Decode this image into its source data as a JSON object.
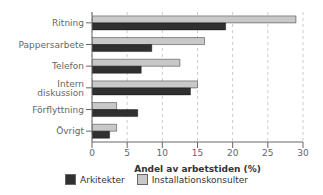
{
  "chart_data": {
    "type": "bar",
    "orientation": "horizontal",
    "categories": [
      "Ritning",
      "Pappersarbete",
      "Telefon",
      "Intern diskussion",
      "Förflyttning",
      "Övrigt"
    ],
    "series": [
      {
        "name": "Arkitekter",
        "color": "#303030",
        "values": [
          19,
          8.5,
          7,
          14,
          6.5,
          2.5
        ]
      },
      {
        "name": "Installationskonsulter",
        "color": "#c8c8c8",
        "values": [
          29,
          16,
          12.5,
          15,
          3.5,
          3.5
        ]
      }
    ],
    "xlabel": "Andel av arbetstiden (%)",
    "xlim": [
      0,
      30
    ],
    "xticks": [
      0,
      5,
      10,
      15,
      20,
      25,
      30
    ],
    "grid": true,
    "legend": "bottom"
  }
}
